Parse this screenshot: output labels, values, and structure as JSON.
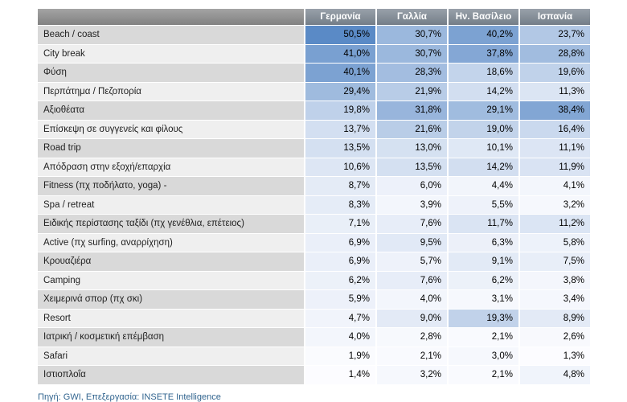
{
  "chart_data": {
    "type": "heatmap",
    "columns": [
      "Γερμανία",
      "Γαλλία",
      "Ην. Βασίλειο",
      "Ισπανία"
    ],
    "rows": [
      {
        "label": "Beach / coast",
        "values": [
          50.5,
          30.7,
          40.2,
          23.7
        ]
      },
      {
        "label": "City break",
        "values": [
          41.0,
          30.7,
          37.8,
          28.8
        ]
      },
      {
        "label": "Φύση",
        "values": [
          40.1,
          28.3,
          18.6,
          19.6
        ]
      },
      {
        "label": "Περπάτημα /  Πεζοπορία",
        "values": [
          29.4,
          21.9,
          14.2,
          11.3
        ]
      },
      {
        "label": "Αξιοθέατα",
        "values": [
          19.8,
          31.8,
          29.1,
          38.4
        ]
      },
      {
        "label": "Επίσκεψη σε συγγενείς και φίλους",
        "values": [
          13.7,
          21.6,
          19.0,
          16.4
        ]
      },
      {
        "label": "Road trip",
        "values": [
          13.5,
          13.0,
          10.1,
          11.1
        ]
      },
      {
        "label": "Απόδραση στην εξοχή/επαρχία",
        "values": [
          10.6,
          13.5,
          14.2,
          11.9
        ]
      },
      {
        "label": "Fitness (πχ ποδήλατο, yoga) -",
        "values": [
          8.7,
          6.0,
          4.4,
          4.1
        ]
      },
      {
        "label": "Spa / retreat",
        "values": [
          8.3,
          3.9,
          5.5,
          3.2
        ]
      },
      {
        "label": "Ειδικής περίστασης ταξίδι (πχ γενέθλια, επέτειος)",
        "values": [
          7.1,
          7.6,
          11.7,
          11.2
        ]
      },
      {
        "label": "Active (πχ surfing, αναρρίχηση)",
        "values": [
          6.9,
          9.5,
          6.3,
          5.8
        ]
      },
      {
        "label": "Κρουαζιέρα",
        "values": [
          6.9,
          5.7,
          9.1,
          7.5
        ]
      },
      {
        "label": "Camping",
        "values": [
          6.2,
          7.6,
          6.2,
          3.8
        ]
      },
      {
        "label": "Χειμερινά σπορ (πχ σκι)",
        "values": [
          5.9,
          4.0,
          3.1,
          3.4
        ]
      },
      {
        "label": "Resort",
        "values": [
          4.7,
          9.0,
          19.3,
          8.9
        ]
      },
      {
        "label": "Ιατρική / κοσμετική επέμβαση",
        "values": [
          4.0,
          2.8,
          2.1,
          2.6
        ]
      },
      {
        "label": "Safari",
        "values": [
          1.9,
          2.1,
          3.0,
          1.3
        ]
      },
      {
        "label": "Ιστιοπλοΐα",
        "values": [
          1.4,
          3.2,
          2.1,
          4.8
        ]
      }
    ],
    "value_format": "percent-one-decimal-comma",
    "color_scale": {
      "min_color": "#FCFCFF",
      "max_color": "#5A8AC6",
      "min_value": 1.3,
      "max_value": 50.5
    },
    "legend_position": "none",
    "source_note": "Πηγή: GWI, Επεξεργασία: INSETE Intelligence"
  },
  "colors": {
    "header_bg": "#8a929b",
    "row_odd_bg": "#d9d9d9",
    "row_even_bg": "#efefef",
    "source_text": "#31648f",
    "value_text": "#000000"
  }
}
